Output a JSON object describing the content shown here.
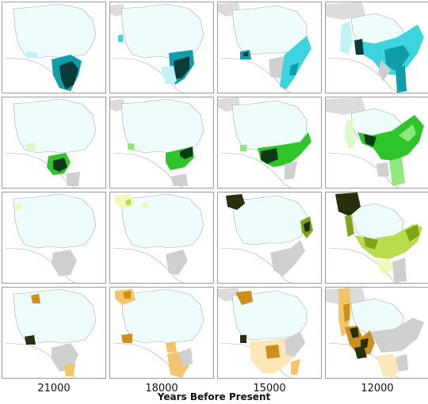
{
  "figure": {
    "x_axis_title": "Years Before Present",
    "columns": [
      "21000",
      "18000",
      "15000",
      "12000"
    ]
  },
  "colors": {
    "ice": "#eefcfd",
    "land": "#ffffff",
    "coast": "#a9a9a9",
    "unknown_gray": "#cfcfcf",
    "row1": [
      "#bff2f6",
      "#3cd4df",
      "#0f9ea9",
      "#0b3b39"
    ],
    "row2": [
      "#dcfac9",
      "#8ee97a",
      "#2ec42a",
      "#0c3a14"
    ],
    "row3": [
      "#f1f8b8",
      "#b9dc4c",
      "#7da41a",
      "#26300a"
    ],
    "row4": [
      "#fde6b8",
      "#f4c46c",
      "#cc8e1c",
      "#2c2308"
    ]
  }
}
